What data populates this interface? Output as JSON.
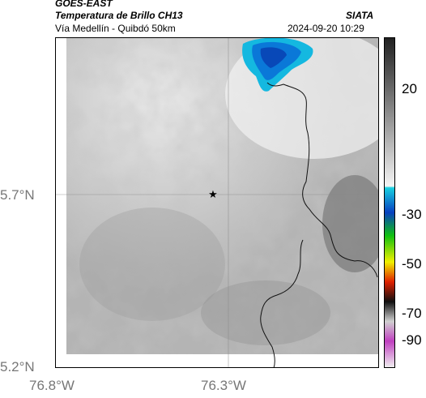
{
  "header": {
    "satellite": "GOES-EAST",
    "product": "Temperatura de Brillo CH13",
    "region": "Vía Medellín - Quibdó 50km",
    "organization": "SIATA",
    "datetime": "2024-09-20 10:29"
  },
  "axes": {
    "lat_ticks": [
      {
        "label": "5.7°N",
        "value": 5.7
      },
      {
        "label": "5.2°N",
        "value": 5.2
      }
    ],
    "lon_ticks": [
      {
        "label": "76.8°W",
        "value": -76.8
      },
      {
        "label": "76.3°W",
        "value": -76.3
      }
    ],
    "lat_range": [
      5.2,
      6.2
    ],
    "lon_range": [
      -76.8,
      -75.8
    ],
    "grid": true
  },
  "colorbar": {
    "ticks": [
      "20",
      "-30",
      "-50",
      "-70",
      "-90"
    ],
    "range": [
      -95,
      35
    ],
    "colors": {
      "warm_top": "#202020",
      "warm_bottom": "#f4f4f4",
      "cyan": "#12c8dc",
      "blue": "#0848c8",
      "green": "#10c010",
      "yellow": "#f0f000",
      "red": "#e01010",
      "black": "#101010",
      "magenta": "#c040c0"
    }
  },
  "markers": [
    {
      "name": "location-star",
      "symbol": "★",
      "lat": 5.7,
      "lon": -76.34
    }
  ]
}
